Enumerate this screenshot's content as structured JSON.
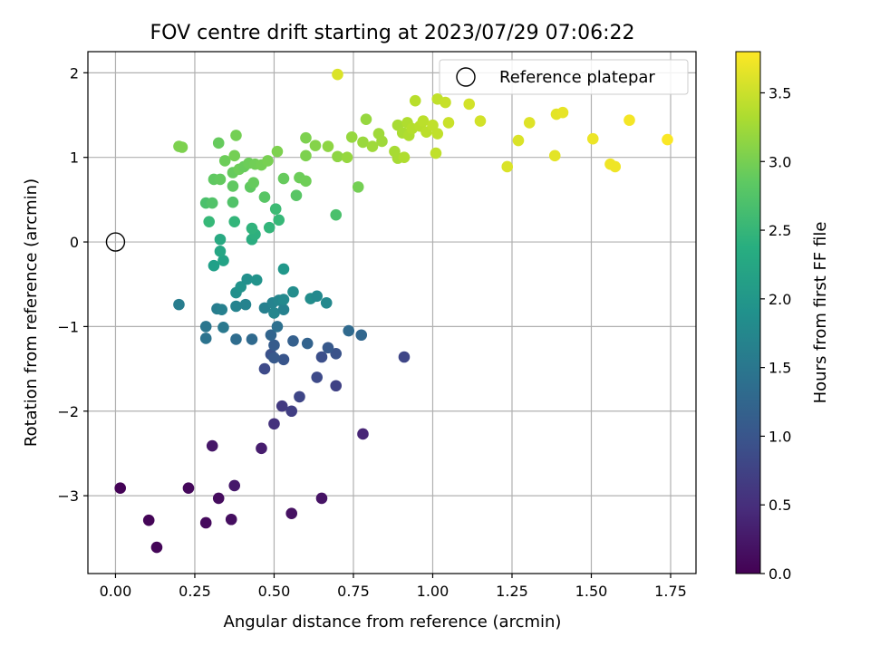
{
  "chart_data": {
    "type": "scatter",
    "title": "FOV centre drift starting at 2023/07/29 07:06:22",
    "xlabel": "Angular distance from reference (arcmin)",
    "ylabel": "Rotation from reference (arcmin)",
    "xlim": [
      -0.087,
      1.83
    ],
    "ylim": [
      -3.92,
      2.25
    ],
    "xticks": [
      0.0,
      0.25,
      0.5,
      0.75,
      1.0,
      1.25,
      1.5,
      1.75
    ],
    "xtick_labels": [
      "0.00",
      "0.25",
      "0.50",
      "0.75",
      "1.00",
      "1.25",
      "1.50",
      "1.75"
    ],
    "yticks": [
      -3,
      -2,
      -1,
      0,
      1,
      2
    ],
    "ytick_labels": [
      "−3",
      "−2",
      "−1",
      "0",
      "1",
      "2"
    ],
    "grid": true,
    "legend": {
      "placement": "top-right",
      "entries": [
        "Reference platepar"
      ]
    },
    "reference_point": {
      "x": 0.0,
      "y": 0.0
    },
    "colorbar": {
      "label": "Hours from first FF file",
      "colormap": "viridis",
      "range": [
        0.0,
        3.8
      ],
      "ticks": [
        0.0,
        0.5,
        1.0,
        1.5,
        2.0,
        2.5,
        3.0,
        3.5
      ],
      "tick_labels": [
        "0.0",
        "0.5",
        "1.0",
        "1.5",
        "2.0",
        "2.5",
        "3.0",
        "3.5"
      ]
    },
    "series": [
      {
        "points": [
          {
            "x": 0.015,
            "y": -2.91,
            "t": 0.02
          },
          {
            "x": 0.105,
            "y": -3.29,
            "t": 0.04
          },
          {
            "x": 0.13,
            "y": -3.61,
            "t": 0.05
          },
          {
            "x": 0.23,
            "y": -2.91,
            "t": 0.08
          },
          {
            "x": 0.285,
            "y": -3.32,
            "t": 0.1
          },
          {
            "x": 0.325,
            "y": -3.03,
            "t": 0.12
          },
          {
            "x": 0.365,
            "y": -3.28,
            "t": 0.14
          },
          {
            "x": 0.555,
            "y": -3.21,
            "t": 0.17
          },
          {
            "x": 0.65,
            "y": -3.03,
            "t": 0.2
          },
          {
            "x": 0.305,
            "y": -2.41,
            "t": 0.24
          },
          {
            "x": 0.375,
            "y": -2.88,
            "t": 0.26
          },
          {
            "x": 0.46,
            "y": -2.44,
            "t": 0.3
          },
          {
            "x": 0.78,
            "y": -2.27,
            "t": 0.4
          },
          {
            "x": 0.5,
            "y": -2.15,
            "t": 0.55
          },
          {
            "x": 0.525,
            "y": -1.94,
            "t": 0.65
          },
          {
            "x": 0.555,
            "y": -2.0,
            "t": 0.7
          },
          {
            "x": 0.58,
            "y": -1.83,
            "t": 0.8
          },
          {
            "x": 0.635,
            "y": -1.6,
            "t": 0.85
          },
          {
            "x": 0.695,
            "y": -1.7,
            "t": 0.75
          },
          {
            "x": 0.91,
            "y": -1.36,
            "t": 0.8
          },
          {
            "x": 0.47,
            "y": -1.5,
            "t": 0.85
          },
          {
            "x": 0.49,
            "y": -1.33,
            "t": 0.95
          },
          {
            "x": 0.53,
            "y": -1.39,
            "t": 1.0
          },
          {
            "x": 0.65,
            "y": -1.36,
            "t": 0.92
          },
          {
            "x": 0.695,
            "y": -1.32,
            "t": 0.97
          },
          {
            "x": 0.67,
            "y": -1.25,
            "t": 1.05
          },
          {
            "x": 0.5,
            "y": -1.22,
            "t": 1.1
          },
          {
            "x": 0.56,
            "y": -1.17,
            "t": 1.15
          },
          {
            "x": 0.605,
            "y": -1.2,
            "t": 1.2
          },
          {
            "x": 0.49,
            "y": -1.1,
            "t": 1.22
          },
          {
            "x": 0.5,
            "y": -1.37,
            "t": 1.05
          },
          {
            "x": 0.43,
            "y": -1.15,
            "t": 1.3
          },
          {
            "x": 0.38,
            "y": -1.15,
            "t": 1.35
          },
          {
            "x": 0.775,
            "y": -1.1,
            "t": 1.25
          },
          {
            "x": 0.735,
            "y": -1.05,
            "t": 1.3
          },
          {
            "x": 0.51,
            "y": -1.0,
            "t": 1.4
          },
          {
            "x": 0.285,
            "y": -1.14,
            "t": 1.45
          },
          {
            "x": 0.285,
            "y": -1.0,
            "t": 1.5
          },
          {
            "x": 0.34,
            "y": -1.01,
            "t": 1.55
          },
          {
            "x": 0.2,
            "y": -0.74,
            "t": 1.6
          },
          {
            "x": 0.32,
            "y": -0.79,
            "t": 1.6
          },
          {
            "x": 0.335,
            "y": -0.8,
            "t": 1.65
          },
          {
            "x": 0.38,
            "y": -0.76,
            "t": 1.7
          },
          {
            "x": 0.41,
            "y": -0.74,
            "t": 1.7
          },
          {
            "x": 0.47,
            "y": -0.78,
            "t": 1.65
          },
          {
            "x": 0.495,
            "y": -0.72,
            "t": 1.7
          },
          {
            "x": 0.5,
            "y": -0.84,
            "t": 1.75
          },
          {
            "x": 0.515,
            "y": -0.69,
            "t": 1.75
          },
          {
            "x": 0.53,
            "y": -0.8,
            "t": 1.68
          },
          {
            "x": 0.53,
            "y": -0.68,
            "t": 1.8
          },
          {
            "x": 0.56,
            "y": -0.59,
            "t": 1.85
          },
          {
            "x": 0.615,
            "y": -0.67,
            "t": 1.85
          },
          {
            "x": 0.635,
            "y": -0.64,
            "t": 1.8
          },
          {
            "x": 0.665,
            "y": -0.72,
            "t": 1.78
          },
          {
            "x": 0.38,
            "y": -0.6,
            "t": 1.9
          },
          {
            "x": 0.395,
            "y": -0.53,
            "t": 1.95
          },
          {
            "x": 0.415,
            "y": -0.44,
            "t": 1.9
          },
          {
            "x": 0.445,
            "y": -0.45,
            "t": 1.95
          },
          {
            "x": 0.53,
            "y": -0.32,
            "t": 2.0
          },
          {
            "x": 0.31,
            "y": -0.28,
            "t": 2.15
          },
          {
            "x": 0.34,
            "y": -0.22,
            "t": 2.2
          },
          {
            "x": 0.33,
            "y": -0.11,
            "t": 2.25
          },
          {
            "x": 0.33,
            "y": 0.03,
            "t": 2.3
          },
          {
            "x": 0.43,
            "y": 0.03,
            "t": 2.35
          },
          {
            "x": 0.44,
            "y": 0.09,
            "t": 2.4
          },
          {
            "x": 0.43,
            "y": 0.16,
            "t": 2.45
          },
          {
            "x": 0.375,
            "y": 0.24,
            "t": 2.5
          },
          {
            "x": 0.295,
            "y": 0.24,
            "t": 2.55
          },
          {
            "x": 0.485,
            "y": 0.17,
            "t": 2.5
          },
          {
            "x": 0.515,
            "y": 0.26,
            "t": 2.55
          },
          {
            "x": 0.505,
            "y": 0.39,
            "t": 2.6
          },
          {
            "x": 0.695,
            "y": 0.32,
            "t": 2.7
          },
          {
            "x": 0.285,
            "y": 0.46,
            "t": 2.7
          },
          {
            "x": 0.305,
            "y": 0.46,
            "t": 2.75
          },
          {
            "x": 0.37,
            "y": 0.47,
            "t": 2.75
          },
          {
            "x": 0.47,
            "y": 0.53,
            "t": 2.8
          },
          {
            "x": 0.57,
            "y": 0.55,
            "t": 2.8
          },
          {
            "x": 0.765,
            "y": 0.65,
            "t": 3.0
          },
          {
            "x": 0.37,
            "y": 0.66,
            "t": 2.85
          },
          {
            "x": 0.425,
            "y": 0.65,
            "t": 2.85
          },
          {
            "x": 0.435,
            "y": 0.7,
            "t": 2.9
          },
          {
            "x": 0.31,
            "y": 0.74,
            "t": 2.85
          },
          {
            "x": 0.33,
            "y": 0.74,
            "t": 2.88
          },
          {
            "x": 0.53,
            "y": 0.75,
            "t": 2.9
          },
          {
            "x": 0.58,
            "y": 0.76,
            "t": 2.95
          },
          {
            "x": 0.6,
            "y": 0.72,
            "t": 2.97
          },
          {
            "x": 0.37,
            "y": 0.82,
            "t": 2.9
          },
          {
            "x": 0.39,
            "y": 0.86,
            "t": 2.95
          },
          {
            "x": 0.405,
            "y": 0.89,
            "t": 2.92
          },
          {
            "x": 0.42,
            "y": 0.93,
            "t": 2.95
          },
          {
            "x": 0.44,
            "y": 0.92,
            "t": 2.98
          },
          {
            "x": 0.46,
            "y": 0.91,
            "t": 3.0
          },
          {
            "x": 0.48,
            "y": 0.96,
            "t": 3.02
          },
          {
            "x": 0.345,
            "y": 0.96,
            "t": 2.95
          },
          {
            "x": 0.375,
            "y": 1.02,
            "t": 3.0
          },
          {
            "x": 0.325,
            "y": 1.17,
            "t": 2.9
          },
          {
            "x": 0.38,
            "y": 1.26,
            "t": 3.0
          },
          {
            "x": 0.2,
            "y": 1.13,
            "t": 3.05
          },
          {
            "x": 0.21,
            "y": 1.12,
            "t": 3.05
          },
          {
            "x": 0.51,
            "y": 1.07,
            "t": 3.05
          },
          {
            "x": 0.6,
            "y": 1.02,
            "t": 3.05
          },
          {
            "x": 0.6,
            "y": 1.23,
            "t": 3.05
          },
          {
            "x": 0.63,
            "y": 1.14,
            "t": 3.1
          },
          {
            "x": 0.67,
            "y": 1.13,
            "t": 3.15
          },
          {
            "x": 0.7,
            "y": 1.01,
            "t": 3.15
          },
          {
            "x": 0.73,
            "y": 1.0,
            "t": 3.2
          },
          {
            "x": 0.745,
            "y": 1.24,
            "t": 3.2
          },
          {
            "x": 0.78,
            "y": 1.18,
            "t": 3.22
          },
          {
            "x": 0.79,
            "y": 1.45,
            "t": 3.2
          },
          {
            "x": 0.81,
            "y": 1.13,
            "t": 3.25
          },
          {
            "x": 0.83,
            "y": 1.28,
            "t": 3.25
          },
          {
            "x": 0.84,
            "y": 1.19,
            "t": 3.25
          },
          {
            "x": 0.88,
            "y": 1.07,
            "t": 3.3
          },
          {
            "x": 0.89,
            "y": 0.99,
            "t": 3.3
          },
          {
            "x": 0.89,
            "y": 1.38,
            "t": 3.3
          },
          {
            "x": 0.905,
            "y": 1.29,
            "t": 3.32
          },
          {
            "x": 0.91,
            "y": 1.0,
            "t": 3.35
          },
          {
            "x": 0.92,
            "y": 1.41,
            "t": 3.35
          },
          {
            "x": 0.925,
            "y": 1.26,
            "t": 3.35
          },
          {
            "x": 0.935,
            "y": 1.34,
            "t": 3.38
          },
          {
            "x": 0.945,
            "y": 1.67,
            "t": 3.4
          },
          {
            "x": 0.96,
            "y": 1.37,
            "t": 3.4
          },
          {
            "x": 0.97,
            "y": 1.43,
            "t": 3.42
          },
          {
            "x": 0.98,
            "y": 1.3,
            "t": 3.42
          },
          {
            "x": 1.0,
            "y": 1.38,
            "t": 3.45
          },
          {
            "x": 1.015,
            "y": 1.28,
            "t": 3.45
          },
          {
            "x": 1.015,
            "y": 1.69,
            "t": 3.45
          },
          {
            "x": 1.01,
            "y": 1.05,
            "t": 3.45
          },
          {
            "x": 1.04,
            "y": 1.65,
            "t": 3.48
          },
          {
            "x": 1.05,
            "y": 1.41,
            "t": 3.5
          },
          {
            "x": 1.115,
            "y": 1.63,
            "t": 3.55
          },
          {
            "x": 1.15,
            "y": 1.43,
            "t": 3.55
          },
          {
            "x": 1.235,
            "y": 0.89,
            "t": 3.6
          },
          {
            "x": 1.27,
            "y": 1.2,
            "t": 3.6
          },
          {
            "x": 1.305,
            "y": 1.41,
            "t": 3.62
          },
          {
            "x": 1.385,
            "y": 1.02,
            "t": 3.65
          },
          {
            "x": 1.39,
            "y": 1.51,
            "t": 3.65
          },
          {
            "x": 1.41,
            "y": 1.53,
            "t": 3.67
          },
          {
            "x": 1.505,
            "y": 1.22,
            "t": 3.7
          },
          {
            "x": 1.56,
            "y": 0.92,
            "t": 3.72
          },
          {
            "x": 1.575,
            "y": 0.89,
            "t": 3.72
          },
          {
            "x": 1.62,
            "y": 1.44,
            "t": 3.75
          },
          {
            "x": 1.74,
            "y": 1.21,
            "t": 3.78
          },
          {
            "x": 0.7,
            "y": 1.98,
            "t": 3.6
          }
        ]
      }
    ]
  }
}
